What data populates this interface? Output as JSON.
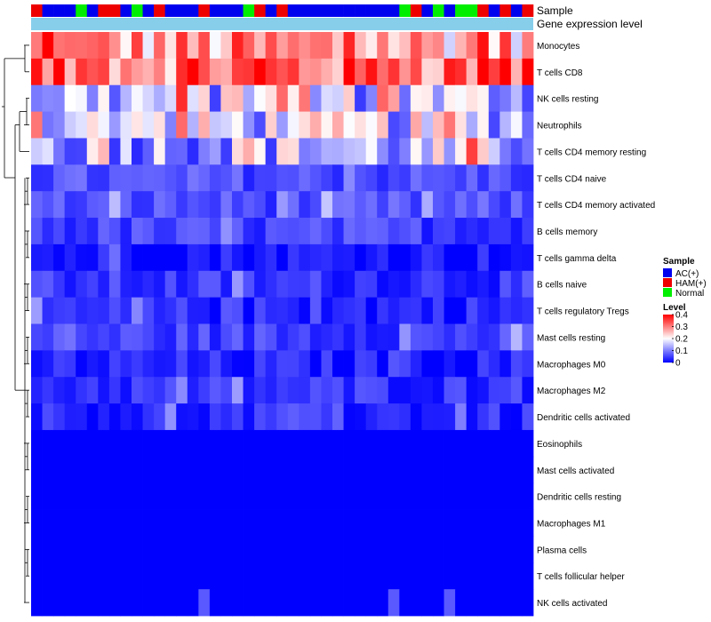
{
  "chart_data": {
    "type": "heatmap",
    "annotation_rows": [
      "Sample",
      "Gene expression level"
    ],
    "sample_groups": [
      "H",
      "A",
      "A",
      "A",
      "N",
      "A",
      "H",
      "H",
      "A",
      "N",
      "A",
      "H",
      "A",
      "A",
      "A",
      "H",
      "A",
      "A",
      "A",
      "N",
      "H",
      "A",
      "H",
      "A",
      "A",
      "A",
      "A",
      "A",
      "A",
      "A",
      "A",
      "A",
      "A",
      "N",
      "H",
      "A",
      "N",
      "A",
      "N",
      "N",
      "H",
      "A",
      "H",
      "A",
      "H"
    ],
    "gene_expression_color": "#87ceeb",
    "row_labels": [
      "Monocytes",
      "T cells CD8",
      "NK cells resting",
      "Neutrophils",
      "T cells CD4 memory resting",
      "T cells CD4 naive",
      "T cells CD4 memory activated",
      "B cells memory",
      "T cells gamma delta",
      "B cells naive",
      "T cells regulatory  Tregs",
      "Mast cells resting",
      "Macrophages M0",
      "Macrophages M2",
      "Dendritic cells activated",
      "Eosinophils",
      "Mast cells activated",
      "Dendritic cells resting",
      "Macrophages M1",
      "Plasma cells",
      "T cells follicular helper",
      "NK cells activated"
    ],
    "row_base_values": [
      0.27,
      0.32,
      0.15,
      0.16,
      0.14,
      0.06,
      0.06,
      0.05,
      0.02,
      0.04,
      0.03,
      0.05,
      0.025,
      0.04,
      0.03,
      0.0,
      0.0,
      0.0,
      0.0,
      0.0,
      0.0,
      0.005
    ],
    "value_range": [
      0,
      0.4
    ],
    "legend": {
      "sample_title": "Sample",
      "sample_items": [
        {
          "key": "A",
          "label": "AC(+)",
          "color": "#0000ee"
        },
        {
          "key": "H",
          "label": "HAM(+)",
          "color": "#ee0000"
        },
        {
          "key": "N",
          "label": "Normal",
          "color": "#00ee00"
        }
      ],
      "level_title": "Level",
      "level_ticks": [
        "0.4",
        "0.3",
        "0.2",
        "0.1",
        "0"
      ],
      "level_tick_values": [
        0.4,
        0.3,
        0.2,
        0.1,
        0
      ]
    },
    "color_scale": {
      "low": "#0000ff",
      "mid": "#ffffff",
      "high": "#ff0000",
      "mid_value": 0.2
    }
  }
}
